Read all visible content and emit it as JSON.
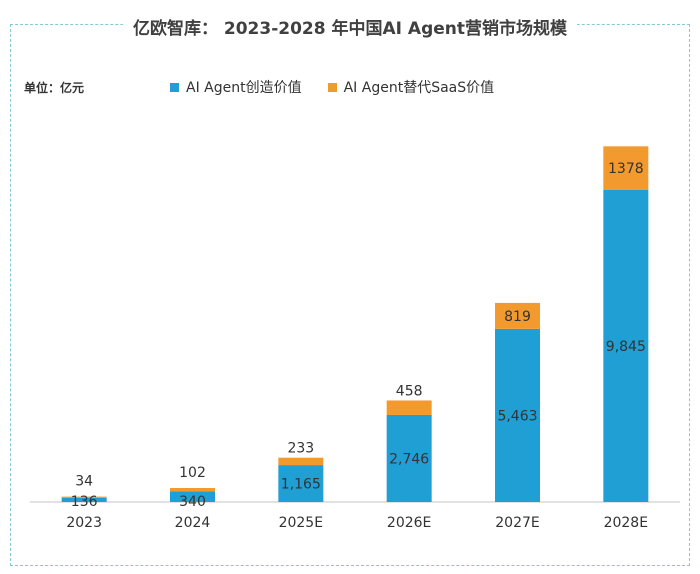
{
  "header": {
    "title": "亿欧智库： 2023-2028 年中国AI Agent营销市场规模"
  },
  "unit_label": "单位：亿元",
  "colors": {
    "series1": "#1f9fd3",
    "series2": "#f39a2f",
    "axis": "#d9d9d9",
    "frame": "#86c9d6"
  },
  "chart_data": {
    "type": "bar",
    "stacked": true,
    "title": "亿欧智库： 2023-2028 年中国AI Agent营销市场规模",
    "ylabel": "单位：亿元",
    "categories": [
      "2023",
      "2024",
      "2025E",
      "2026E",
      "2027E",
      "2028E"
    ],
    "series": [
      {
        "name": "AI Agent创造价值",
        "values": [
          136,
          340,
          1165,
          2746,
          5463,
          9845
        ],
        "labels": [
          "136",
          "340",
          "1,165",
          "2,746",
          "5,463",
          "9,845"
        ]
      },
      {
        "name": "AI Agent替代SaaS价值",
        "values": [
          34,
          102,
          233,
          458,
          819,
          1378
        ],
        "labels": [
          "34",
          "102",
          "233",
          "458",
          "819",
          "1378"
        ]
      }
    ],
    "ylim": [
      0,
      13000
    ],
    "grid": false,
    "legend_position": "top"
  }
}
